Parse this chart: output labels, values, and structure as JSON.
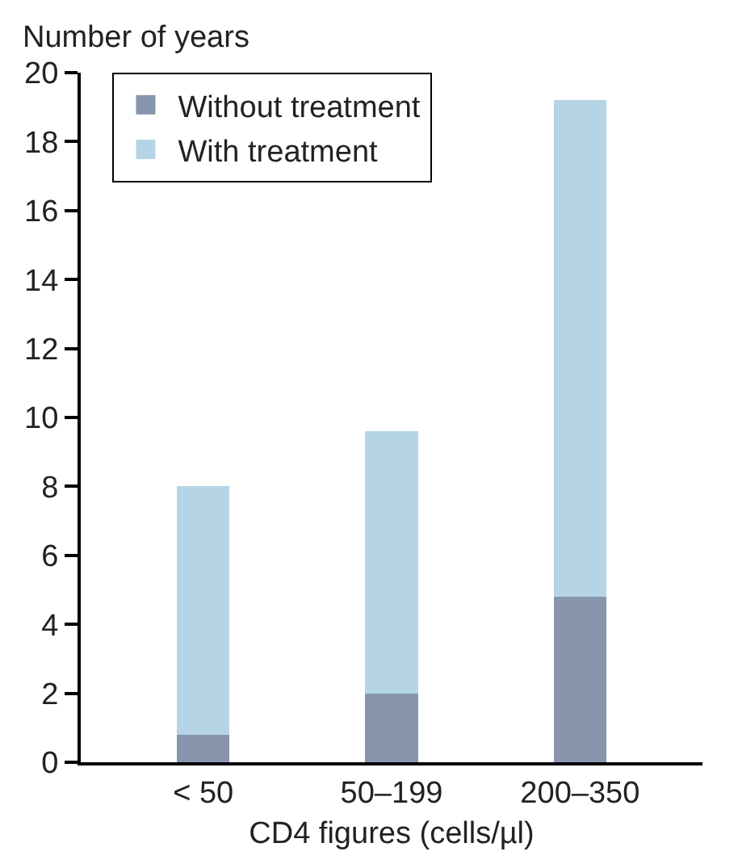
{
  "chart_data": {
    "type": "bar",
    "stacked": true,
    "xlabel": "CD4 figures (cells/µl)",
    "ylabel": "Number of years",
    "categories": [
      "< 50",
      "50–199",
      "200–350"
    ],
    "series": [
      {
        "name": "Without treatment",
        "color": "#8796ad",
        "values": [
          0.8,
          2.0,
          4.8
        ]
      },
      {
        "name": "With treatment",
        "color": "#b5d5e6",
        "values": [
          7.2,
          7.6,
          14.4
        ]
      }
    ],
    "ylim": [
      0,
      20
    ],
    "yticks": [
      0,
      2,
      4,
      6,
      8,
      10,
      12,
      14,
      16,
      18,
      20
    ],
    "legend": "top left"
  }
}
